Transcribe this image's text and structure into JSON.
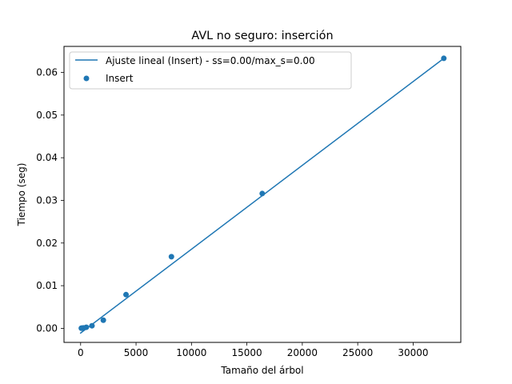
{
  "chart_data": {
    "type": "scatter",
    "title": "AVL no seguro: inserción",
    "xlabel": "Tamaño del árbol",
    "ylabel": "Tiempo (seg)",
    "xlim": [
      -1500,
      34300
    ],
    "ylim": [
      -0.0033,
      0.0661
    ],
    "xticks": [
      0,
      5000,
      10000,
      15000,
      20000,
      25000,
      30000
    ],
    "xtick_labels": [
      "0",
      "5000",
      "10000",
      "15000",
      "20000",
      "25000",
      "30000"
    ],
    "yticks": [
      0.0,
      0.01,
      0.02,
      0.03,
      0.04,
      0.05,
      0.06
    ],
    "ytick_labels": [
      "0.00",
      "0.01",
      "0.02",
      "0.03",
      "0.04",
      "0.05",
      "0.06"
    ],
    "grid": false,
    "legend_position": "top-left",
    "series": [
      {
        "name": "Ajuste lineal (Insert) - ss=0.00/max_s=0.00",
        "kind": "line",
        "color": "#1f77b4",
        "x": [
          0,
          32768
        ],
        "y": [
          -0.0011,
          0.0633
        ]
      },
      {
        "name": "Insert",
        "kind": "scatter",
        "color": "#1f77b4",
        "x": [
          64,
          128,
          256,
          512,
          1024,
          2048,
          4096,
          8192,
          16384,
          32768
        ],
        "y": [
          3e-05,
          6e-05,
          0.0001,
          0.00025,
          0.0006,
          0.0019,
          0.0079,
          0.0168,
          0.0316,
          0.0633
        ]
      }
    ]
  }
}
